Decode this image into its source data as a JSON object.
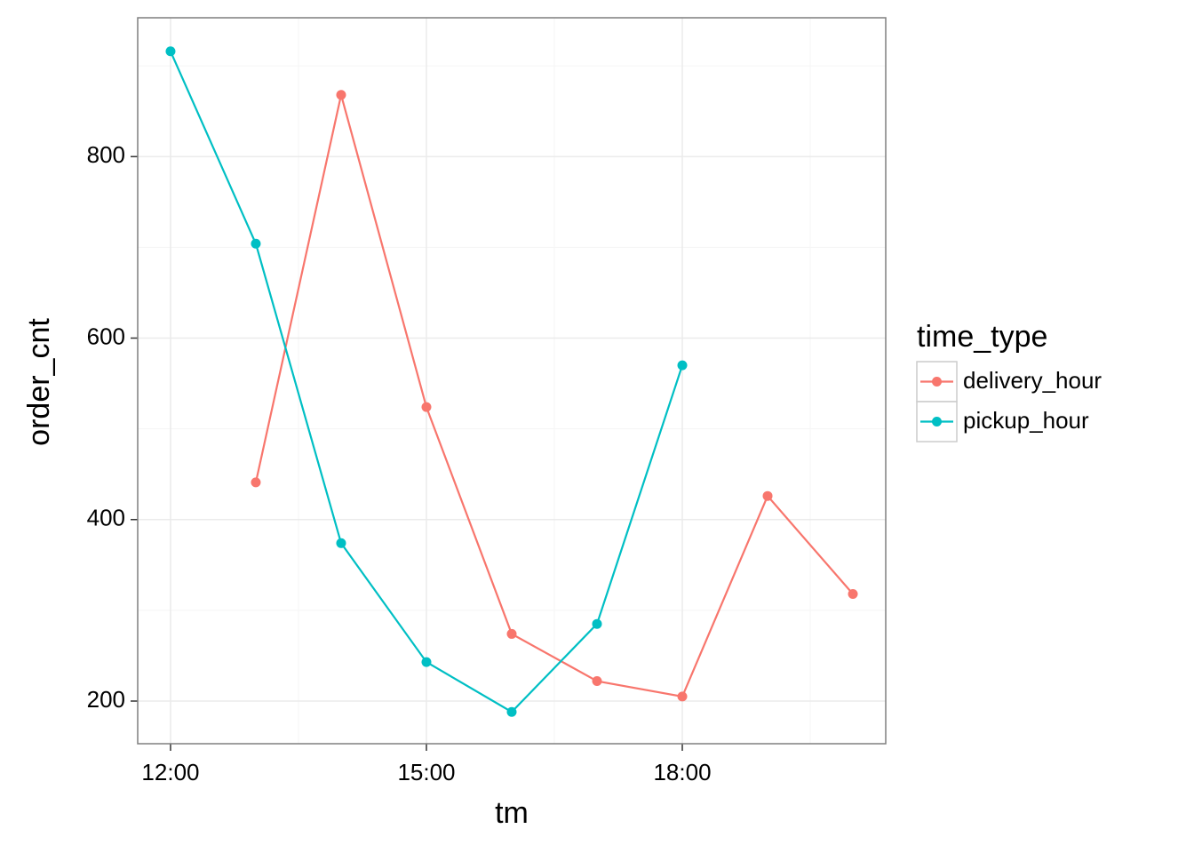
{
  "chart_data": {
    "type": "line",
    "x_label": "tm",
    "y_label": "order_cnt",
    "x": [
      12,
      13,
      14,
      15,
      16,
      17,
      18,
      19,
      20
    ],
    "series": [
      {
        "name": "delivery_hour",
        "color": "#f8766d",
        "values": [
          null,
          441,
          868,
          524,
          274,
          222,
          205,
          426,
          318
        ]
      },
      {
        "name": "pickup_hour",
        "color": "#00bfc4",
        "values": [
          916,
          704,
          374,
          243,
          188,
          285,
          570,
          null,
          null
        ]
      }
    ],
    "xlim": [
      11.615,
      20.385
    ],
    "xticks": [
      {
        "value": 12,
        "label": "12:00"
      },
      {
        "value": 15,
        "label": "15:00"
      },
      {
        "value": 18,
        "label": "18:00"
      }
    ],
    "ylim": [
      153,
      953
    ],
    "yticks": [
      200,
      400,
      600,
      800
    ],
    "grid": true,
    "legend_title": "time_type",
    "legend": "right"
  }
}
